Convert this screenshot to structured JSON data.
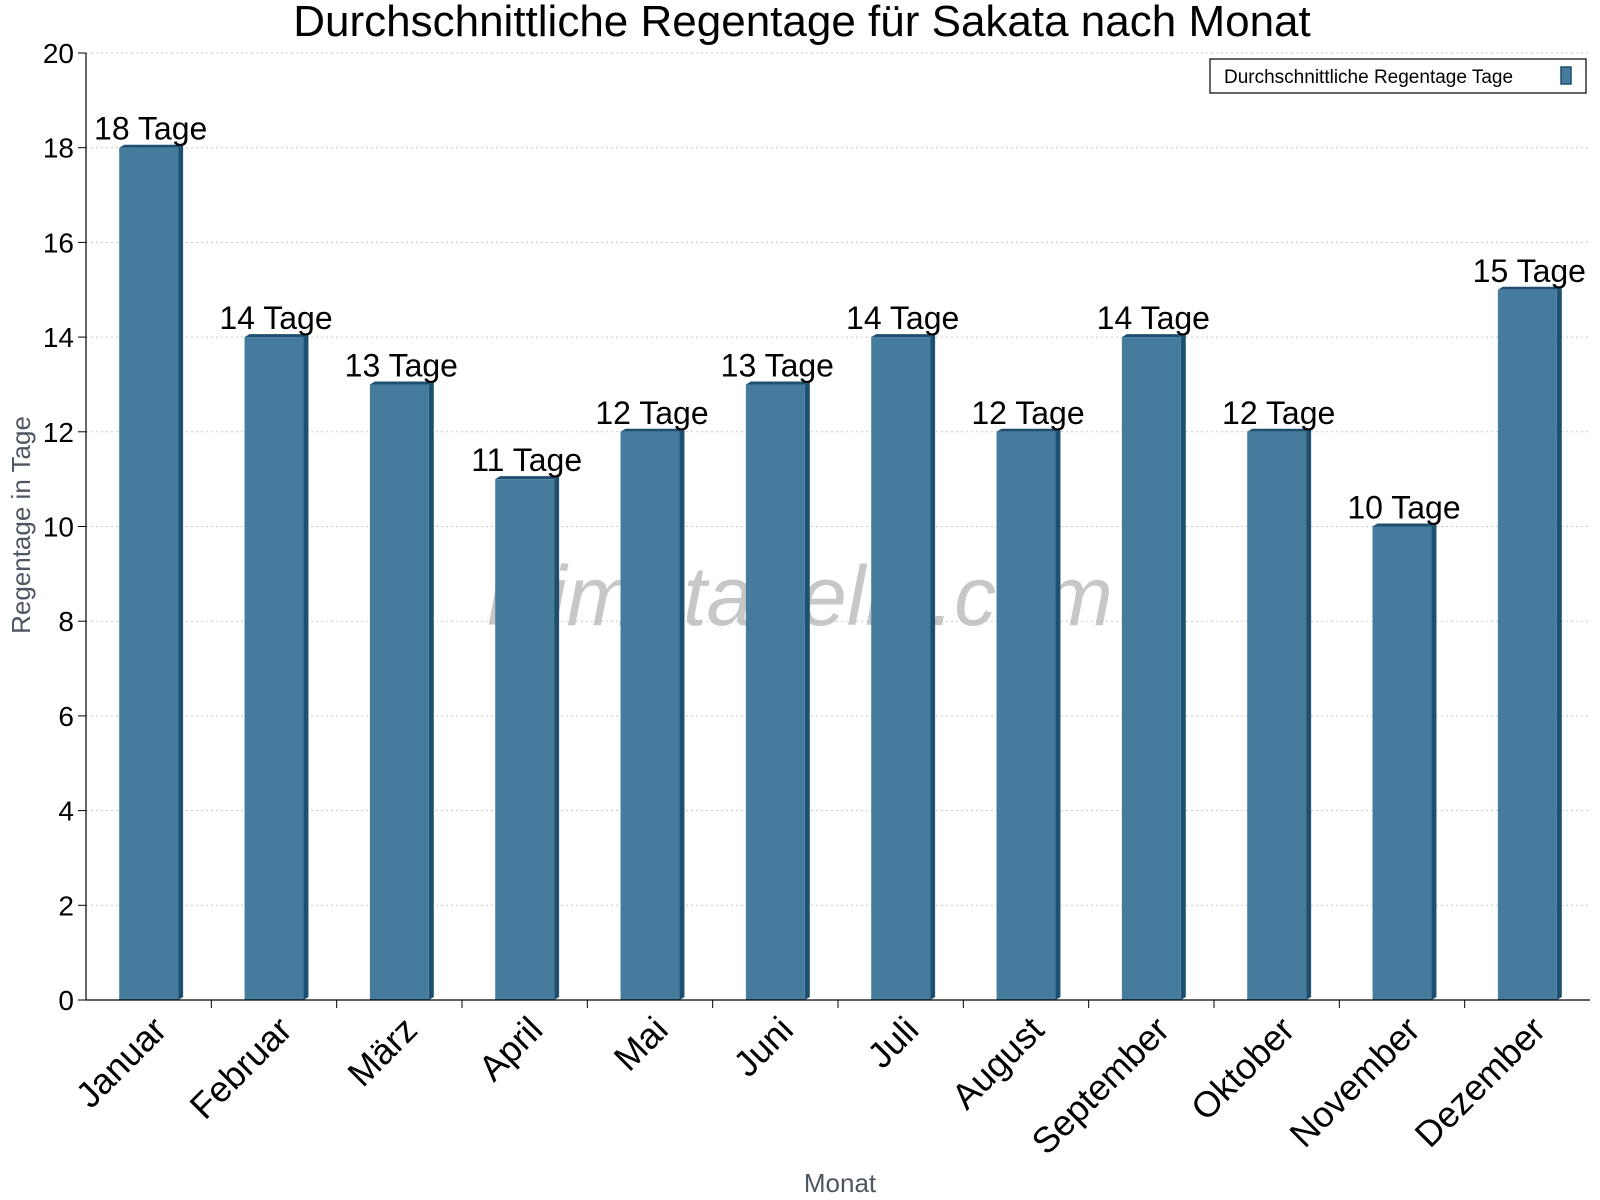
{
  "chart_data": {
    "type": "bar",
    "title": "Durchschnittliche Regentage für Sakata nach Monat",
    "xlabel": "Monat",
    "ylabel": "Regentage in Tage",
    "categories": [
      "Januar",
      "Februar",
      "März",
      "April",
      "Mai",
      "Juni",
      "Juli",
      "August",
      "September",
      "Oktober",
      "November",
      "Dezember"
    ],
    "series": [
      {
        "name": "Durchschnittliche Regentage Tage",
        "values": [
          18,
          14,
          13,
          11,
          12,
          13,
          14,
          12,
          14,
          12,
          10,
          15
        ],
        "labels": [
          "18 Tage",
          "14 Tage",
          "13 Tage",
          "11 Tage",
          "12 Tage",
          "13 Tage",
          "14 Tage",
          "12 Tage",
          "14 Tage",
          "12 Tage",
          "10 Tage",
          "15 Tage"
        ]
      }
    ],
    "ylim": [
      0,
      20
    ],
    "yticks": [
      "0",
      "2",
      "4",
      "6",
      "8",
      "10",
      "12",
      "14",
      "16",
      "18",
      "20"
    ],
    "grid": true,
    "legend_position": "top-right",
    "bar_color": "#457b9d",
    "bar_side_color": "#1d4f70",
    "watermark": "klimatabelle.com"
  }
}
